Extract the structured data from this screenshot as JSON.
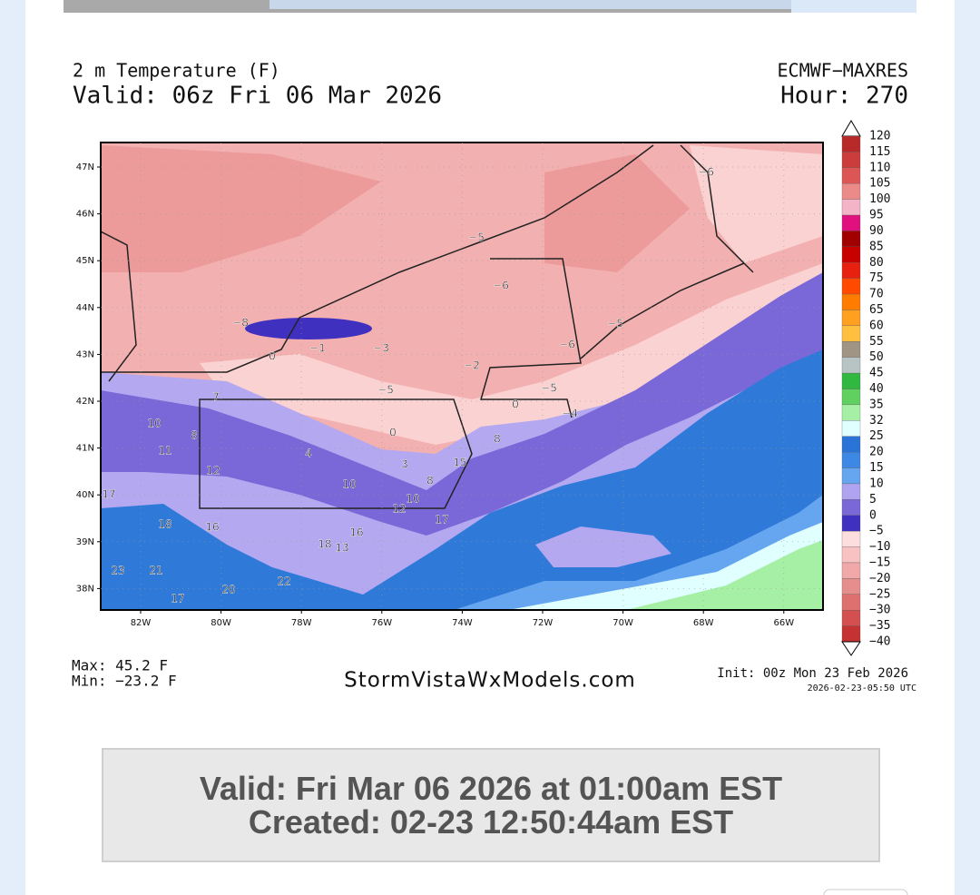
{
  "header": {
    "variable": "2 m Temperature (F)",
    "valid": "Valid: 06z Fri 06 Mar 2026",
    "model": "ECMWF−MAXRES",
    "hour": "Hour: 270"
  },
  "footer": {
    "max": "Max: 45.2 F",
    "min": "Min: −23.2 F",
    "site": "StormVistaWxModels.com",
    "init": "Init: 00z Mon 23 Feb 2026",
    "stamp": "2026-02-23-05:50 UTC"
  },
  "map": {
    "lat_labels": [
      "47N",
      "46N",
      "45N",
      "44N",
      "43N",
      "42N",
      "41N",
      "40N",
      "39N",
      "38N"
    ],
    "lon_labels": [
      "82W",
      "80W",
      "78W",
      "76W",
      "74W",
      "72W",
      "70W",
      "68W",
      "66W"
    ],
    "point_labels": [
      "−8",
      "−1",
      "−3",
      "0",
      "−5",
      "−6",
      "−6",
      "−5",
      "−6",
      "−2",
      "−5",
      "−5",
      "0",
      "−4",
      "7",
      "10",
      "8",
      "11",
      "0",
      "4",
      "3",
      "8",
      "12",
      "10",
      "8",
      "15",
      "17",
      "10",
      "12",
      "18",
      "16",
      "17",
      "16",
      "18",
      "13",
      "23",
      "21",
      "22",
      "20",
      "17"
    ]
  },
  "colorbar": [
    {
      "label": "120",
      "color": "#b82a2a"
    },
    {
      "label": "115",
      "color": "#cc3c3c"
    },
    {
      "label": "110",
      "color": "#dc5656"
    },
    {
      "label": "105",
      "color": "#ec8a8a"
    },
    {
      "label": "100",
      "color": "#f4b4c8"
    },
    {
      "label": "95",
      "color": "#e0107e"
    },
    {
      "label": "90",
      "color": "#a00000"
    },
    {
      "label": "85",
      "color": "#c80000"
    },
    {
      "label": "80",
      "color": "#e82010"
    },
    {
      "label": "75",
      "color": "#ff4a00"
    },
    {
      "label": "70",
      "color": "#ff7c00"
    },
    {
      "label": "65",
      "color": "#ffa020"
    },
    {
      "label": "60",
      "color": "#ffc040"
    },
    {
      "label": "55",
      "color": "#f0d060"
    },
    {
      "label": "50",
      "color": "#a09484"
    },
    {
      "label": "45",
      "color": "#b8c4c4"
    },
    {
      "label": "40",
      "color": "#30b840"
    },
    {
      "label": "35",
      "color": "#60d060"
    },
    {
      "label": "32",
      "color": "#a6f0a6"
    },
    {
      "label": "25",
      "color": "#e0ffff"
    },
    {
      "label": "20",
      "color": "#2a74d8"
    },
    {
      "label": "15",
      "color": "#3c88e4"
    },
    {
      "label": "10",
      "color": "#66a6f0"
    },
    {
      "label": "5",
      "color": "#b0a4f0"
    },
    {
      "label": "0",
      "color": "#7a68d8"
    },
    {
      "label": "−5",
      "color": "#4030c0"
    },
    {
      "label": "−10",
      "color": "#fcdede"
    },
    {
      "label": "−15",
      "color": "#f8c2c2"
    },
    {
      "label": "−20",
      "color": "#f0a8a8"
    },
    {
      "label": "−25",
      "color": "#e68e8e"
    },
    {
      "label": "−30",
      "color": "#de7070"
    },
    {
      "label": "−35",
      "color": "#d45050"
    },
    {
      "label": "−40",
      "color": "#c43232"
    }
  ],
  "banner": {
    "valid": "Valid: Fri Mar 06 2026 at 01:00am EST",
    "created": "Created: 02-23 12:50:44am EST"
  }
}
